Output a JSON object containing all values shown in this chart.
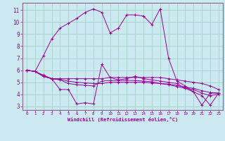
{
  "xlabel": "Windchill (Refroidissement éolien,°C)",
  "bg_color": "#cce8f0",
  "grid_color": "#99ccbb",
  "line_color": "#990099",
  "spine_color": "#886688",
  "xlim": [
    -0.5,
    23.5
  ],
  "ylim": [
    2.7,
    11.6
  ],
  "xticks": [
    0,
    1,
    2,
    3,
    4,
    5,
    6,
    7,
    8,
    9,
    10,
    11,
    12,
    13,
    14,
    15,
    16,
    17,
    18,
    19,
    20,
    21,
    22,
    23
  ],
  "yticks": [
    3,
    4,
    5,
    6,
    7,
    8,
    9,
    10,
    11
  ],
  "series": [
    {
      "x": [
        0,
        1,
        2,
        3,
        4,
        5,
        6,
        7,
        8,
        9,
        10,
        11,
        12,
        13,
        14,
        15,
        16,
        17,
        18,
        19,
        20,
        21,
        22,
        23
      ],
      "y": [
        6.0,
        5.9,
        7.2,
        8.6,
        9.5,
        9.9,
        10.3,
        10.8,
        11.1,
        10.8,
        9.1,
        9.5,
        10.6,
        10.6,
        10.5,
        9.8,
        11.1,
        7.0,
        5.1,
        4.7,
        4.2,
        3.1,
        4.1,
        4.1
      ]
    },
    {
      "x": [
        0,
        1,
        2,
        3,
        4,
        5,
        6,
        7,
        8,
        9,
        10,
        11,
        12,
        13,
        14,
        15,
        16,
        17,
        18,
        19,
        20,
        21,
        22,
        23
      ],
      "y": [
        6.0,
        5.9,
        5.5,
        5.3,
        4.4,
        4.4,
        3.2,
        3.3,
        3.2,
        6.5,
        5.4,
        5.2,
        5.3,
        5.5,
        5.3,
        5.2,
        5.1,
        5.0,
        4.9,
        4.5,
        4.2,
        3.9,
        3.1,
        4.1
      ]
    },
    {
      "x": [
        0,
        1,
        2,
        3,
        4,
        5,
        6,
        7,
        8,
        9,
        10,
        11,
        12,
        13,
        14,
        15,
        16,
        17,
        18,
        19,
        20,
        21,
        22,
        23
      ],
      "y": [
        6.0,
        5.9,
        5.5,
        5.3,
        5.3,
        5.3,
        5.3,
        5.3,
        5.3,
        5.3,
        5.4,
        5.4,
        5.4,
        5.4,
        5.4,
        5.4,
        5.4,
        5.3,
        5.2,
        5.1,
        5.0,
        4.9,
        4.7,
        4.4
      ]
    },
    {
      "x": [
        0,
        1,
        2,
        3,
        4,
        5,
        6,
        7,
        8,
        9,
        10,
        11,
        12,
        13,
        14,
        15,
        16,
        17,
        18,
        19,
        20,
        21,
        22,
        23
      ],
      "y": [
        6.0,
        5.9,
        5.6,
        5.3,
        5.25,
        5.1,
        5.0,
        4.95,
        4.9,
        4.9,
        5.0,
        5.0,
        5.0,
        5.0,
        5.0,
        4.95,
        4.9,
        4.85,
        4.75,
        4.6,
        4.5,
        4.3,
        4.15,
        4.1
      ]
    },
    {
      "x": [
        0,
        1,
        2,
        3,
        4,
        5,
        6,
        7,
        8,
        9,
        10,
        11,
        12,
        13,
        14,
        15,
        16,
        17,
        18,
        19,
        20,
        21,
        22,
        23
      ],
      "y": [
        6.0,
        5.9,
        5.5,
        5.3,
        5.2,
        4.9,
        4.8,
        4.75,
        4.7,
        5.1,
        5.15,
        5.15,
        5.15,
        5.15,
        5.1,
        5.05,
        4.9,
        4.8,
        4.65,
        4.5,
        4.4,
        4.1,
        3.9,
        4.0
      ]
    }
  ]
}
